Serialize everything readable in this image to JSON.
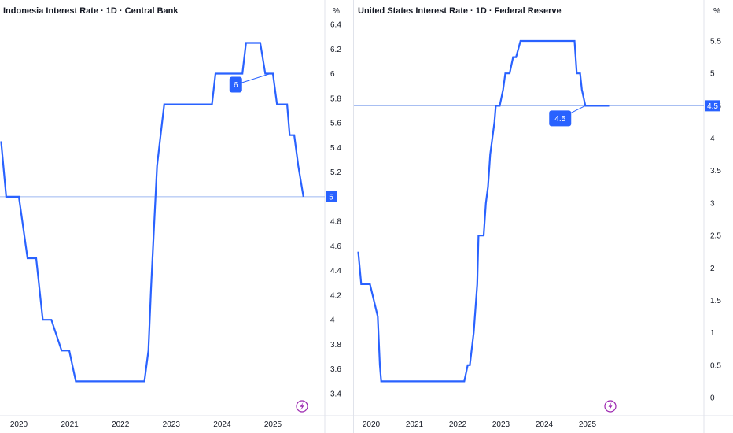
{
  "colors": {
    "line": "#2962ff",
    "ref_line": "#9cb6f0",
    "axis_text": "#131722",
    "grid_border": "#e0e3eb",
    "badge_text": "#ffffff",
    "flash_icon": "#9c27b0"
  },
  "icons": {
    "flash": "lightning-bolt-icon"
  },
  "chart_data": [
    {
      "type": "line",
      "title": "Indonesia Interest Rate · 1D · Central Bank",
      "unit_label": "%",
      "xlim": [
        2019.65,
        2025.8
      ],
      "ylim": [
        3.35,
        6.5
      ],
      "x_ticks": [
        2020,
        2021,
        2022,
        2023,
        2024,
        2025
      ],
      "x_tick_labels": [
        "2020",
        "2021",
        "2022",
        "2023",
        "2024",
        "2025"
      ],
      "y_ticks": [
        3.4,
        3.6,
        3.8,
        4,
        4.2,
        4.4,
        4.6,
        4.8,
        5,
        5.2,
        5.4,
        5.6,
        5.8,
        6,
        6.2,
        6.4
      ],
      "y_tick_labels": [
        "3.4",
        "3.6",
        "3.8",
        "4",
        "4.2",
        "4.4",
        "4.6",
        "4.8",
        "5",
        "5.2",
        "5.4",
        "5.6",
        "5.8",
        "6",
        "6.2",
        "6.4"
      ],
      "current_value": 5,
      "current_value_label": "5",
      "annotation": {
        "label": "6",
        "x": 2024.95,
        "y": 6
      },
      "series": [
        {
          "x": [
            2019.65,
            2019.75,
            2020.0,
            2020.17,
            2020.34,
            2020.47,
            2020.64,
            2020.84,
            2020.99,
            2021.12,
            2022.0,
            2022.47,
            2022.55,
            2022.6,
            2022.66,
            2022.72,
            2022.79,
            2022.86,
            2022.95,
            2023.05,
            2023.22,
            2023.8,
            2023.87,
            2024.0,
            2024.4,
            2024.47,
            2024.75,
            2024.85,
            2025.0,
            2025.08,
            2025.28,
            2025.33,
            2025.42,
            2025.5,
            2025.6
          ],
          "y": [
            5.45,
            5,
            5,
            4.5,
            4.5,
            4,
            4,
            3.75,
            3.75,
            3.5,
            3.5,
            3.5,
            3.75,
            4.25,
            4.75,
            5.25,
            5.5,
            5.75,
            5.75,
            5.75,
            5.75,
            5.75,
            6,
            6,
            6,
            6.25,
            6.25,
            6,
            6,
            5.75,
            5.75,
            5.5,
            5.5,
            5.25,
            5
          ]
        }
      ]
    },
    {
      "type": "line",
      "title": "United States Interest Rate · 1D · Federal Reserve",
      "unit_label": "%",
      "xlim": [
        2019.7,
        2026.3
      ],
      "ylim": [
        -0.15,
        5.85
      ],
      "x_ticks": [
        2020,
        2021,
        2022,
        2023,
        2024,
        2025
      ],
      "x_tick_labels": [
        "2020",
        "2021",
        "2022",
        "2023",
        "2024",
        "2025"
      ],
      "y_ticks": [
        0,
        0.5,
        1,
        1.5,
        2,
        2.5,
        3,
        3.5,
        4,
        4.5,
        5,
        5.5
      ],
      "y_tick_labels": [
        "0",
        "0.5",
        "1",
        "1.5",
        "2",
        "2.5",
        "3",
        "3.5",
        "4",
        "4.5",
        "5",
        "5.5"
      ],
      "current_value": 4.5,
      "current_value_label": "4.5",
      "annotation": {
        "label": "4.5",
        "x": 2024.95,
        "y": 4.5
      },
      "series": [
        {
          "x": [
            2019.7,
            2019.77,
            2019.97,
            2020.15,
            2020.2,
            2020.23,
            2022.15,
            2022.23,
            2022.28,
            2022.37,
            2022.45,
            2022.48,
            2022.6,
            2022.65,
            2022.7,
            2022.75,
            2022.85,
            2022.88,
            2022.97,
            2023.05,
            2023.1,
            2023.2,
            2023.28,
            2023.35,
            2023.45,
            2023.55,
            2024.7,
            2024.75,
            2024.83,
            2024.87,
            2024.95,
            2025.5
          ],
          "y": [
            2.25,
            1.75,
            1.75,
            1.25,
            0.5,
            0.25,
            0.25,
            0.5,
            0.5,
            1,
            1.75,
            2.5,
            2.5,
            3,
            3.25,
            3.75,
            4.25,
            4.5,
            4.5,
            4.75,
            5,
            5,
            5.25,
            5.25,
            5.5,
            5.5,
            5.5,
            5,
            5,
            4.75,
            4.5,
            4.5
          ]
        }
      ]
    }
  ]
}
